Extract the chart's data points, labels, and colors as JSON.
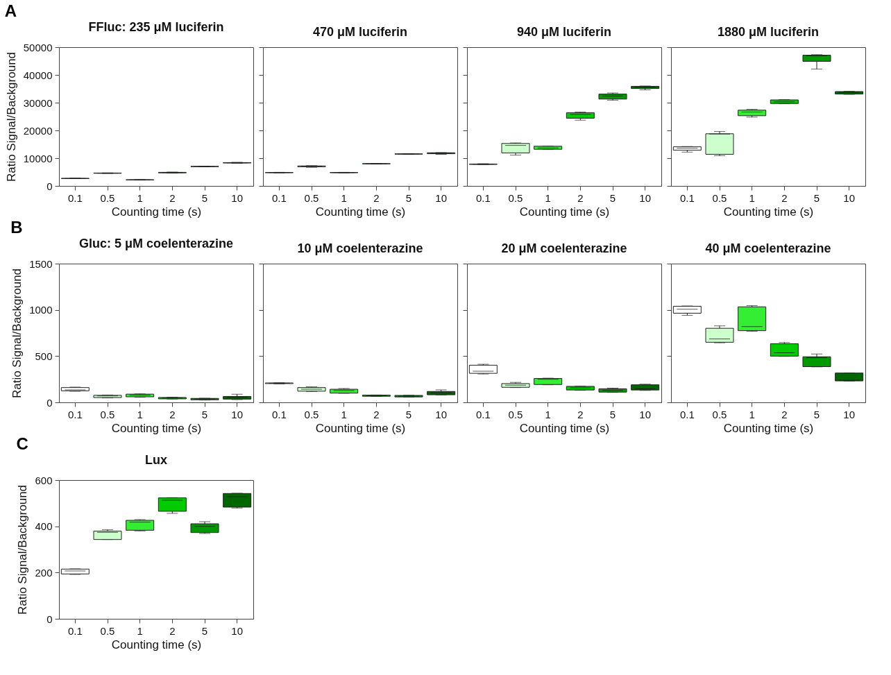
{
  "chart_data": [
    {
      "type": "box",
      "title": "FFluc: 235 μM luciferin",
      "xlabel": "Counting time (s)",
      "ylabel": "Ratio Signal/Background",
      "annotations": [
        "A"
      ],
      "categories": [
        "0.1",
        "0.5",
        "1",
        "2",
        "5",
        "10"
      ],
      "colors": [
        "#ffffff",
        "#ccffcc",
        "#33ee33",
        "#00cc00",
        "#009900",
        "#006600"
      ],
      "ylim": [
        0,
        50000
      ],
      "yticks": [
        0,
        10000,
        20000,
        30000,
        40000,
        50000
      ],
      "boxes": [
        {
          "low": 2600,
          "q1": 2650,
          "median": 2700,
          "q3": 2750,
          "high": 2800
        },
        {
          "low": 4500,
          "q1": 4550,
          "median": 4600,
          "q3": 4650,
          "high": 4700
        },
        {
          "low": 2100,
          "q1": 2150,
          "median": 2200,
          "q3": 2250,
          "high": 2300
        },
        {
          "low": 4600,
          "q1": 4700,
          "median": 4800,
          "q3": 4900,
          "high": 5000
        },
        {
          "low": 6900,
          "q1": 6950,
          "median": 7000,
          "q3": 7050,
          "high": 7100
        },
        {
          "low": 8200,
          "q1": 8250,
          "median": 8300,
          "q3": 8400,
          "high": 8500
        }
      ]
    },
    {
      "type": "box",
      "title": "470 μM luciferin",
      "xlabel": "Counting time (s)",
      "categories": [
        "0.1",
        "0.5",
        "1",
        "2",
        "5",
        "10"
      ],
      "colors": [
        "#ffffff",
        "#ccffcc",
        "#33ee33",
        "#00cc00",
        "#009900",
        "#006600"
      ],
      "ylim": [
        0,
        50000
      ],
      "yticks": [
        0,
        10000,
        20000,
        30000,
        40000,
        50000
      ],
      "tick_labels": "x",
      "boxes": [
        {
          "low": 4700,
          "q1": 4750,
          "median": 4800,
          "q3": 4850,
          "high": 4900
        },
        {
          "low": 6700,
          "q1": 6900,
          "median": 7100,
          "q3": 7200,
          "high": 7300
        },
        {
          "low": 4700,
          "q1": 4750,
          "median": 4800,
          "q3": 4850,
          "high": 4900
        },
        {
          "low": 7900,
          "q1": 7950,
          "median": 8000,
          "q3": 8050,
          "high": 8100
        },
        {
          "low": 11400,
          "q1": 11450,
          "median": 11500,
          "q3": 11550,
          "high": 11600
        },
        {
          "low": 11400,
          "q1": 11600,
          "median": 11800,
          "q3": 11950,
          "high": 12000
        }
      ]
    },
    {
      "type": "box",
      "title": "940 μM luciferin",
      "xlabel": "Counting time (s)",
      "categories": [
        "0.1",
        "0.5",
        "1",
        "2",
        "5",
        "10"
      ],
      "colors": [
        "#ffffff",
        "#ccffcc",
        "#33ee33",
        "#00cc00",
        "#009900",
        "#006600"
      ],
      "ylim": [
        0,
        50000
      ],
      "yticks": [
        0,
        10000,
        20000,
        30000,
        40000,
        50000
      ],
      "tick_labels": "x",
      "boxes": [
        {
          "low": 7700,
          "q1": 7750,
          "median": 7800,
          "q3": 7900,
          "high": 8000
        },
        {
          "low": 11100,
          "q1": 11900,
          "median": 14600,
          "q3": 15300,
          "high": 15500
        },
        {
          "low": 13100,
          "q1": 13200,
          "median": 13700,
          "q3": 14300,
          "high": 14400
        },
        {
          "low": 23700,
          "q1": 24400,
          "median": 25800,
          "q3": 26400,
          "high": 26600
        },
        {
          "low": 30900,
          "q1": 31300,
          "median": 32400,
          "q3": 33100,
          "high": 33500
        },
        {
          "low": 34600,
          "q1": 35100,
          "median": 35600,
          "q3": 35900,
          "high": 36000
        }
      ]
    },
    {
      "type": "box",
      "title": "1880 μM luciferin",
      "xlabel": "Counting time (s)",
      "categories": [
        "0.1",
        "0.5",
        "1",
        "2",
        "5",
        "10"
      ],
      "colors": [
        "#ffffff",
        "#ccffcc",
        "#33ee33",
        "#00cc00",
        "#009900",
        "#006600"
      ],
      "ylim": [
        0,
        50000
      ],
      "yticks": [
        0,
        10000,
        20000,
        30000,
        40000,
        50000
      ],
      "tick_labels": "x",
      "boxes": [
        {
          "low": 12200,
          "q1": 12900,
          "median": 13600,
          "q3": 14100,
          "high": 14200
        },
        {
          "low": 10900,
          "q1": 11400,
          "median": 18700,
          "q3": 18800,
          "high": 19600
        },
        {
          "low": 24800,
          "q1": 25300,
          "median": 26600,
          "q3": 27300,
          "high": 27600
        },
        {
          "low": 29600,
          "q1": 29700,
          "median": 30300,
          "q3": 31000,
          "high": 31100
        },
        {
          "low": 42100,
          "q1": 44900,
          "median": 46900,
          "q3": 47100,
          "high": 47300
        },
        {
          "low": 33000,
          "q1": 33100,
          "median": 33700,
          "q3": 34000,
          "high": 34100
        }
      ]
    },
    {
      "type": "box",
      "title": "Gluc: 5 μM coelenterazine",
      "xlabel": "Counting time (s)",
      "ylabel": "Ratio Signal/Background",
      "annotations": [
        "B"
      ],
      "categories": [
        "0.1",
        "0.5",
        "1",
        "2",
        "5",
        "10"
      ],
      "colors": [
        "#ffffff",
        "#ccffcc",
        "#33ee33",
        "#00cc00",
        "#009900",
        "#006600"
      ],
      "ylim": [
        0,
        1500
      ],
      "yticks": [
        0,
        500,
        1000,
        1500
      ],
      "boxes": [
        {
          "low": 120,
          "q1": 125,
          "median": 135,
          "q3": 160,
          "high": 165
        },
        {
          "low": 48,
          "q1": 52,
          "median": 70,
          "q3": 76,
          "high": 80
        },
        {
          "low": 55,
          "q1": 60,
          "median": 78,
          "q3": 89,
          "high": 92
        },
        {
          "low": 36,
          "q1": 38,
          "median": 48,
          "q3": 53,
          "high": 56
        },
        {
          "low": 25,
          "q1": 28,
          "median": 37,
          "q3": 43,
          "high": 45
        },
        {
          "low": 30,
          "q1": 35,
          "median": 55,
          "q3": 64,
          "high": 89
        }
      ]
    },
    {
      "type": "box",
      "title": "10 μM coelenterazine",
      "xlabel": "Counting time (s)",
      "categories": [
        "0.1",
        "0.5",
        "1",
        "2",
        "5",
        "10"
      ],
      "colors": [
        "#ffffff",
        "#ccffcc",
        "#33ee33",
        "#00cc00",
        "#009900",
        "#006600"
      ],
      "ylim": [
        0,
        1500
      ],
      "yticks": [
        0,
        500,
        1000,
        1500
      ],
      "tick_labels": "x",
      "boxes": [
        {
          "low": 200,
          "q1": 203,
          "median": 207,
          "q3": 210,
          "high": 212
        },
        {
          "low": 118,
          "q1": 121,
          "median": 142,
          "q3": 160,
          "high": 168
        },
        {
          "low": 98,
          "q1": 100,
          "median": 128,
          "q3": 142,
          "high": 150
        },
        {
          "low": 64,
          "q1": 66,
          "median": 72,
          "q3": 78,
          "high": 80
        },
        {
          "low": 57,
          "q1": 59,
          "median": 68,
          "q3": 75,
          "high": 77
        },
        {
          "low": 80,
          "q1": 82,
          "median": 103,
          "q3": 118,
          "high": 135
        }
      ]
    },
    {
      "type": "box",
      "title": "20 μM coelenterazine",
      "xlabel": "Counting time (s)",
      "categories": [
        "0.1",
        "0.5",
        "1",
        "2",
        "5",
        "10"
      ],
      "colors": [
        "#ffffff",
        "#ccffcc",
        "#33ee33",
        "#00cc00",
        "#009900",
        "#006600"
      ],
      "ylim": [
        0,
        1500
      ],
      "yticks": [
        0,
        500,
        1000,
        1500
      ],
      "tick_labels": "x",
      "boxes": [
        {
          "low": 307,
          "q1": 314,
          "median": 337,
          "q3": 402,
          "high": 412
        },
        {
          "low": 160,
          "q1": 163,
          "median": 186,
          "q3": 203,
          "high": 216
        },
        {
          "low": 190,
          "q1": 193,
          "median": 250,
          "q3": 258,
          "high": 262
        },
        {
          "low": 130,
          "q1": 134,
          "median": 157,
          "q3": 173,
          "high": 176
        },
        {
          "low": 108,
          "q1": 111,
          "median": 131,
          "q3": 147,
          "high": 154
        },
        {
          "low": 130,
          "q1": 134,
          "median": 147,
          "q3": 190,
          "high": 196
        }
      ]
    },
    {
      "type": "box",
      "title": "40 μM coelenterazine",
      "xlabel": "Counting time (s)",
      "categories": [
        "0.1",
        "0.5",
        "1",
        "2",
        "5",
        "10"
      ],
      "colors": [
        "#ffffff",
        "#ccffcc",
        "#33ee33",
        "#00cc00",
        "#009900",
        "#006600"
      ],
      "ylim": [
        0,
        1500
      ],
      "yticks": [
        0,
        500,
        1000,
        1500
      ],
      "tick_labels": "x",
      "boxes": [
        {
          "low": 941,
          "q1": 964,
          "median": 1007,
          "q3": 1039,
          "high": 1042
        },
        {
          "low": 644,
          "q1": 650,
          "median": 686,
          "q3": 801,
          "high": 827
        },
        {
          "low": 768,
          "q1": 775,
          "median": 820,
          "q3": 1033,
          "high": 1046
        },
        {
          "low": 497,
          "q1": 500,
          "median": 536,
          "q3": 634,
          "high": 647
        },
        {
          "low": 384,
          "q1": 386,
          "median": 483,
          "q3": 493,
          "high": 523
        },
        {
          "low": 230,
          "q1": 232,
          "median": 239,
          "q3": 317,
          "high": 319
        }
      ]
    },
    {
      "type": "box",
      "title": "Lux",
      "xlabel": "Counting time (s)",
      "ylabel": "Ratio Signal/Background",
      "annotations": [
        "C"
      ],
      "categories": [
        "0.1",
        "0.5",
        "1",
        "2",
        "5",
        "10"
      ],
      "colors": [
        "#ffffff",
        "#ccffcc",
        "#33ee33",
        "#00cc00",
        "#009900",
        "#006600"
      ],
      "ylim": [
        0,
        600
      ],
      "yticks": [
        0,
        200,
        400,
        600
      ],
      "boxes": [
        {
          "low": 192,
          "q1": 194,
          "median": 207,
          "q3": 215,
          "high": 216
        },
        {
          "low": 343,
          "q1": 343,
          "median": 374,
          "q3": 379,
          "high": 385
        },
        {
          "low": 380,
          "q1": 383,
          "median": 418,
          "q3": 426,
          "high": 429
        },
        {
          "low": 456,
          "q1": 465,
          "median": 513,
          "q3": 523,
          "high": 524
        },
        {
          "low": 369,
          "q1": 373,
          "median": 400,
          "q3": 411,
          "high": 420
        },
        {
          "low": 479,
          "q1": 483,
          "median": 528,
          "q3": 542,
          "high": 543
        }
      ]
    }
  ]
}
